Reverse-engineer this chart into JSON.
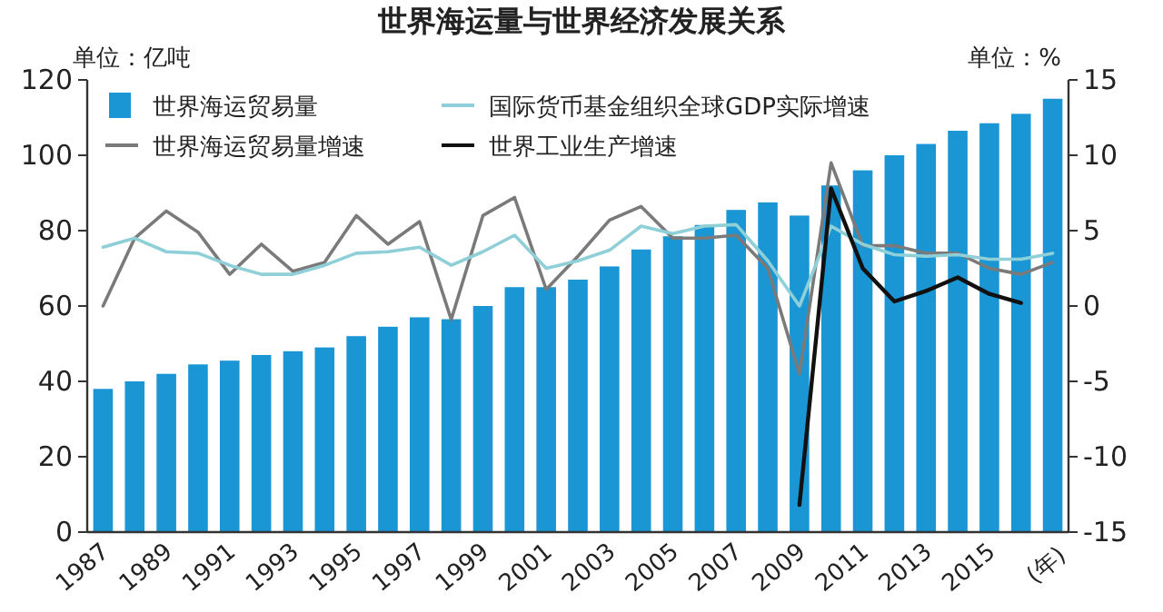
{
  "chart_data": {
    "type": "bar",
    "title": "世界海运量与世界经济发展关系",
    "ylabel": "单位：亿吨",
    "y2label": "单位：%",
    "xlabel": "(年)",
    "categories": [
      "1987",
      null,
      "1989",
      null,
      "1991",
      null,
      "1993",
      null,
      "1995",
      null,
      "1997",
      null,
      "1999",
      null,
      "2001",
      null,
      "2003",
      null,
      "2005",
      null,
      "2007",
      null,
      "2009",
      null,
      "2011",
      null,
      "2013",
      null,
      "2015",
      null,
      null
    ],
    "series": [
      {
        "name": "世界海运贸易量",
        "color": "#1a96d4",
        "values": [
          38,
          40,
          42,
          44.5,
          45.5,
          47,
          48,
          49,
          52,
          54.5,
          57,
          56.5,
          60,
          65,
          65,
          67,
          70.5,
          75,
          78.5,
          81.5,
          85.5,
          87.5,
          84,
          92,
          96,
          100,
          103,
          106.5,
          108.5,
          111,
          115
        ]
      },
      {
        "name": "世界海运贸易量增速",
        "type": "line",
        "axis": "y2",
        "color": "#7a7a7a",
        "values": [
          0,
          4.5,
          6.3,
          4.9,
          2.1,
          4.1,
          2.3,
          2.9,
          6.0,
          4.1,
          5.6,
          -0.9,
          6.0,
          7.2,
          1.1,
          3.3,
          5.7,
          6.6,
          4.5,
          4.5,
          4.7,
          2.5,
          -4.5,
          9.5,
          4.0,
          4.0,
          3.5,
          3.5,
          2.5,
          2.1,
          2.9
        ]
      },
      {
        "name": "国际货币基金组织全球GDP实际增速",
        "type": "line",
        "axis": "y2",
        "color": "#8ecfd8",
        "values": [
          3.9,
          4.5,
          3.6,
          3.5,
          2.7,
          2.1,
          2.1,
          2.7,
          3.5,
          3.6,
          3.9,
          2.7,
          3.6,
          4.7,
          2.5,
          3.0,
          3.7,
          5.3,
          4.8,
          5.3,
          5.4,
          3.0,
          0,
          5.3,
          4.1,
          3.4,
          3.3,
          3.4,
          3.1,
          3.1,
          3.5
        ]
      },
      {
        "name": "世界工业生产增速",
        "type": "line",
        "axis": "y2",
        "color": "#111111",
        "values": [
          null,
          null,
          null,
          null,
          null,
          null,
          null,
          null,
          null,
          null,
          null,
          null,
          null,
          null,
          null,
          null,
          null,
          null,
          null,
          null,
          null,
          null,
          -13.2,
          7.8,
          2.5,
          0.3,
          1.0,
          1.9,
          0.8,
          0.2,
          null
        ]
      }
    ],
    "ylim": [
      0,
      120
    ],
    "yticks": [
      0,
      20,
      40,
      60,
      80,
      100,
      120
    ],
    "y2lim": [
      -15,
      15
    ],
    "y2ticks": [
      -15,
      -10,
      -5,
      0,
      5,
      10,
      15
    ],
    "grid": false,
    "legend": "top left",
    "marker": "none",
    "line_style": "solid"
  }
}
